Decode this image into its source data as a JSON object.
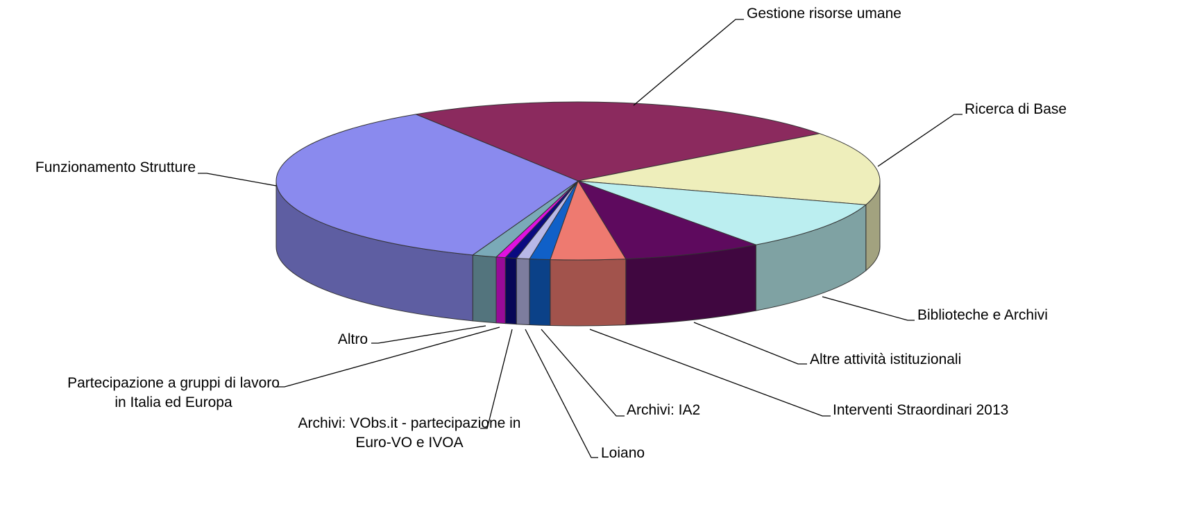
{
  "chart_data": {
    "type": "pie",
    "categories": [
      "Gestione risorse umane",
      "Ricerca di Base",
      "Biblioteche e Archivi",
      "Altre attività istituzionali",
      "Interventi Straordinari 2013",
      "Archivi: IA2",
      "Loiano",
      "Archivi: VObs.it - partecipazione in Euro-VO e IVOA",
      "Partecipazione a gruppi di lavoro in Italia ed Europa",
      "Altro",
      "Funzionamento Strutture"
    ],
    "values": [
      23.8,
      15.1,
      10.1,
      7.5,
      4.0,
      1.1,
      0.7,
      0.6,
      0.5,
      1.3,
      35.3
    ],
    "colors": [
      "#8b2a5e",
      "#eeeebb",
      "#bbeef0",
      "#5e0a5e",
      "#ee7a70",
      "#1060c8",
      "#b8b8e8",
      "#0a0a80",
      "#e010e0",
      "#7aaab8",
      "#8a8aee"
    ]
  }
}
